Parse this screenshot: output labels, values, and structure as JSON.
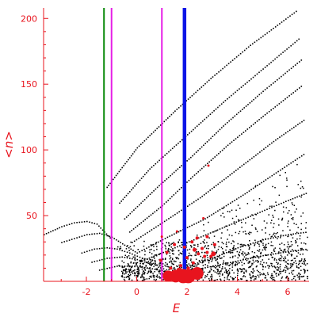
{
  "chart_data": {
    "type": "scatter",
    "title": "",
    "xlabel": "E",
    "ylabel": "<n>",
    "xlim": [
      -3.7,
      6.85
    ],
    "ylim": [
      0,
      208
    ],
    "x_ticks": [
      -2,
      0,
      2,
      4,
      6
    ],
    "y_ticks": [
      50,
      100,
      150,
      200
    ],
    "grid": false,
    "legend": "none",
    "colors": {
      "axis": "#e8141e",
      "points": "#000000",
      "highlight_points": "#e8141e",
      "line_green": "#0a8a0a",
      "line_magenta": "#e61ee6",
      "line_blue": "#0a14e6"
    },
    "vertical_lines": [
      {
        "x": -1.3,
        "color": "green"
      },
      {
        "x": -1.0,
        "color": "magenta"
      },
      {
        "x": 1.0,
        "color": "magenta"
      },
      {
        "x": 1.9,
        "color": "blue"
      }
    ],
    "curves": [
      {
        "family": "upper",
        "points": [
          [
            -1.2,
            72
          ],
          [
            0.0,
            102
          ],
          [
            1.5,
            130
          ],
          [
            3.0,
            156
          ],
          [
            4.5,
            180
          ],
          [
            6.4,
            207
          ]
        ]
      },
      {
        "family": "upper",
        "points": [
          [
            -0.7,
            60
          ],
          [
            0.5,
            86
          ],
          [
            2.0,
            112
          ],
          [
            3.5,
            138
          ],
          [
            5.0,
            162
          ],
          [
            6.5,
            186
          ]
        ]
      },
      {
        "family": "upper",
        "points": [
          [
            -0.5,
            48
          ],
          [
            0.8,
            72
          ],
          [
            2.2,
            96
          ],
          [
            3.5,
            120
          ],
          [
            5.0,
            145
          ],
          [
            6.6,
            170
          ]
        ]
      },
      {
        "family": "upper",
        "points": [
          [
            -0.3,
            38
          ],
          [
            1.0,
            58
          ],
          [
            2.2,
            80
          ],
          [
            3.6,
            104
          ],
          [
            5.0,
            126
          ],
          [
            6.6,
            150
          ]
        ]
      },
      {
        "family": "upper",
        "points": [
          [
            -0.2,
            30
          ],
          [
            1.0,
            45
          ],
          [
            2.5,
            64
          ],
          [
            4.0,
            86
          ],
          [
            5.5,
            108
          ],
          [
            6.7,
            124
          ]
        ]
      },
      {
        "family": "upper",
        "points": [
          [
            0.0,
            22
          ],
          [
            1.2,
            34
          ],
          [
            2.7,
            48
          ],
          [
            4.2,
            66
          ],
          [
            5.6,
            84
          ],
          [
            6.7,
            98
          ]
        ]
      },
      {
        "family": "upper",
        "points": [
          [
            0.2,
            16
          ],
          [
            1.5,
            26
          ],
          [
            3.0,
            38
          ],
          [
            4.5,
            50
          ],
          [
            6.0,
            62
          ],
          [
            6.8,
            68
          ]
        ]
      },
      {
        "family": "left",
        "points": [
          [
            -3.7,
            36
          ],
          [
            -3.0,
            42
          ],
          [
            -2.5,
            45
          ],
          [
            -2.0,
            46
          ],
          [
            -1.6,
            44
          ],
          [
            -1.3,
            38
          ],
          [
            -1.0,
            32
          ]
        ]
      },
      {
        "family": "left",
        "points": [
          [
            -3.0,
            30
          ],
          [
            -2.5,
            33
          ],
          [
            -2.0,
            36
          ],
          [
            -1.5,
            37
          ],
          [
            -1.0,
            34
          ],
          [
            -0.5,
            28
          ],
          [
            0.0,
            22
          ]
        ]
      },
      {
        "family": "left",
        "points": [
          [
            -2.2,
            22
          ],
          [
            -1.7,
            25
          ],
          [
            -1.2,
            26
          ],
          [
            -0.8,
            25
          ],
          [
            -0.3,
            22
          ],
          [
            0.2,
            18
          ],
          [
            0.8,
            16
          ]
        ]
      },
      {
        "family": "left",
        "points": [
          [
            -1.8,
            15
          ],
          [
            -1.2,
            18
          ],
          [
            -0.6,
            19
          ],
          [
            0.0,
            17
          ],
          [
            0.5,
            14
          ],
          [
            1.0,
            12
          ]
        ]
      },
      {
        "family": "left",
        "points": [
          [
            -1.5,
            9
          ],
          [
            -0.8,
            12
          ],
          [
            0.0,
            12
          ],
          [
            0.6,
            10
          ],
          [
            1.2,
            8
          ],
          [
            1.8,
            7
          ]
        ]
      },
      {
        "family": "lower",
        "points": [
          [
            2.0,
            12
          ],
          [
            3.0,
            18
          ],
          [
            4.0,
            26
          ],
          [
            5.0,
            32
          ],
          [
            6.0,
            36
          ],
          [
            6.8,
            38
          ]
        ]
      },
      {
        "family": "lower",
        "points": [
          [
            2.0,
            8
          ],
          [
            3.0,
            12
          ],
          [
            4.0,
            16
          ],
          [
            5.0,
            20
          ],
          [
            6.0,
            23
          ],
          [
            6.8,
            25
          ]
        ]
      }
    ],
    "red_points": [
      [
        1.25,
        4,
        7
      ],
      [
        1.55,
        4,
        8
      ],
      [
        1.85,
        4,
        9
      ],
      [
        2.05,
        4,
        9
      ],
      [
        2.4,
        6,
        8
      ],
      [
        1.7,
        8,
        4
      ],
      [
        0.95,
        16,
        2
      ],
      [
        1.35,
        10,
        2
      ],
      [
        1.75,
        12,
        2
      ],
      [
        2.05,
        10,
        2
      ],
      [
        2.25,
        14,
        2
      ],
      [
        2.45,
        21,
        2
      ],
      [
        2.6,
        25,
        2
      ],
      [
        2.8,
        22,
        2
      ],
      [
        2.95,
        19,
        2
      ],
      [
        3.05,
        21,
        3
      ],
      [
        2.7,
        19,
        2
      ],
      [
        1.5,
        28,
        2
      ],
      [
        1.9,
        26,
        2
      ],
      [
        2.2,
        30,
        2
      ],
      [
        2.4,
        33,
        2
      ],
      [
        2.8,
        34,
        2
      ],
      [
        3.1,
        28,
        2
      ],
      [
        2.0,
        18,
        2
      ],
      [
        1.2,
        22,
        2
      ],
      [
        2.65,
        48,
        1.5
      ],
      [
        2.85,
        88,
        1.5
      ],
      [
        1.0,
        34,
        1.5
      ],
      [
        1.6,
        38,
        1.5
      ],
      [
        2.3,
        24,
        2.5
      ]
    ]
  }
}
